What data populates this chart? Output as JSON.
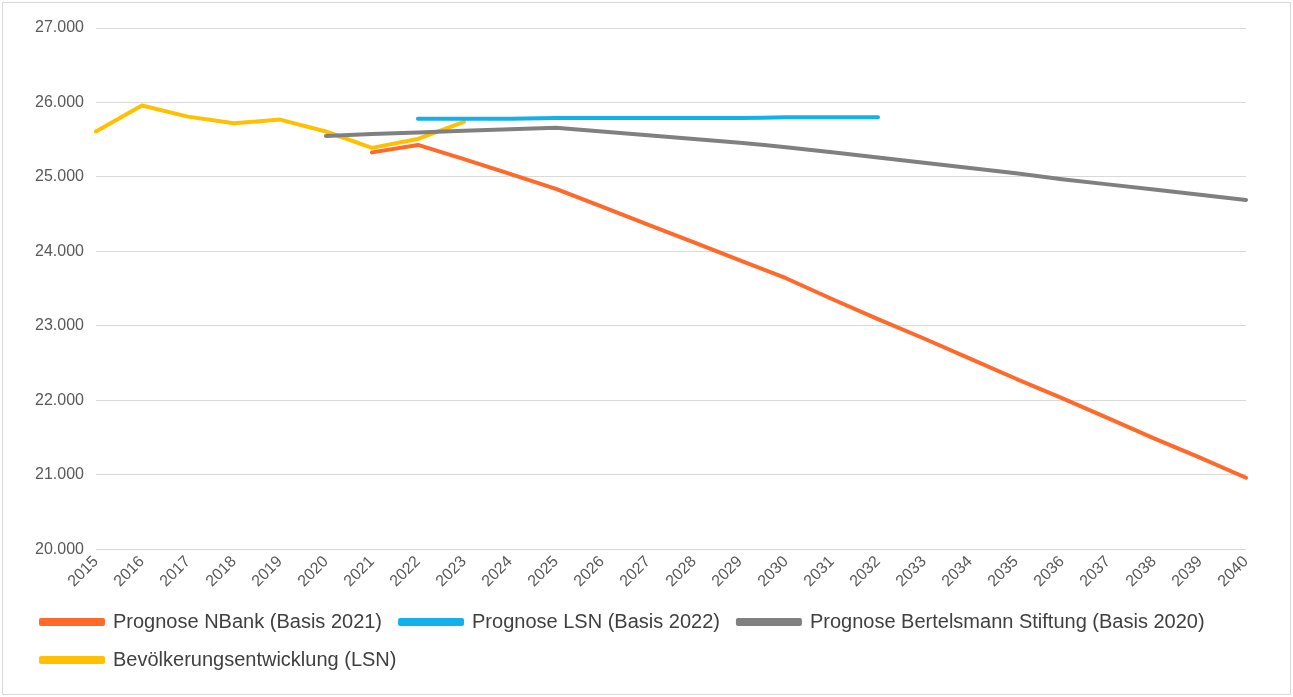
{
  "chart_data": {
    "type": "line",
    "categories": [
      "2015",
      "2016",
      "2017",
      "2018",
      "2019",
      "2020",
      "2021",
      "2022",
      "2023",
      "2024",
      "2025",
      "2026",
      "2027",
      "2028",
      "2029",
      "2030",
      "2031",
      "2032",
      "2033",
      "2034",
      "2035",
      "2036",
      "2037",
      "2038",
      "2039",
      "2040"
    ],
    "series": [
      {
        "name": "Prognose NBank (Basis 2021)",
        "color": "#ff6a2b",
        "values": [
          null,
          null,
          null,
          null,
          null,
          null,
          25330,
          25430,
          25240,
          25040,
          24840,
          24600,
          24360,
          24120,
          23880,
          23640,
          23360,
          23090,
          22830,
          22560,
          22290,
          22030,
          21760,
          21490,
          21230,
          20960
        ]
      },
      {
        "name": "Prognose LSN (Basis 2022)",
        "color": "#13b0ea",
        "values": [
          null,
          null,
          null,
          null,
          null,
          null,
          null,
          25780,
          25780,
          25780,
          25790,
          25790,
          25790,
          25790,
          25790,
          25800,
          25800,
          25800,
          null,
          null,
          null,
          null,
          null,
          null,
          null,
          null
        ]
      },
      {
        "name": "Prognose Bertelsmann Stiftung (Basis 2020)",
        "color": "#808080",
        "values": [
          null,
          null,
          null,
          null,
          null,
          25550,
          25575,
          25595,
          25620,
          25640,
          25660,
          25610,
          25560,
          25510,
          25460,
          25400,
          25330,
          25260,
          25190,
          25120,
          25050,
          24970,
          24900,
          24830,
          24760,
          24690
        ]
      },
      {
        "name": "Bevölkerungsentwicklung (LSN)",
        "color": "#ffc000",
        "values": [
          25610,
          25960,
          25810,
          25720,
          25770,
          25610,
          25390,
          25510,
          25740,
          null,
          null,
          null,
          null,
          null,
          null,
          null,
          null,
          null,
          null,
          null,
          null,
          null,
          null,
          null,
          null,
          null
        ]
      }
    ],
    "ylim": [
      20000,
      27000
    ],
    "yticks": [
      {
        "value": 20000,
        "label": "20.000"
      },
      {
        "value": 21000,
        "label": "21.000"
      },
      {
        "value": 22000,
        "label": "22.000"
      },
      {
        "value": 23000,
        "label": "23.000"
      },
      {
        "value": 24000,
        "label": "24.000"
      },
      {
        "value": 25000,
        "label": "25.000"
      },
      {
        "value": 26000,
        "label": "26.000"
      },
      {
        "value": 27000,
        "label": "27.000"
      }
    ],
    "grid": "y",
    "legend": "bottom",
    "marker": "none",
    "line_style": "solid"
  }
}
